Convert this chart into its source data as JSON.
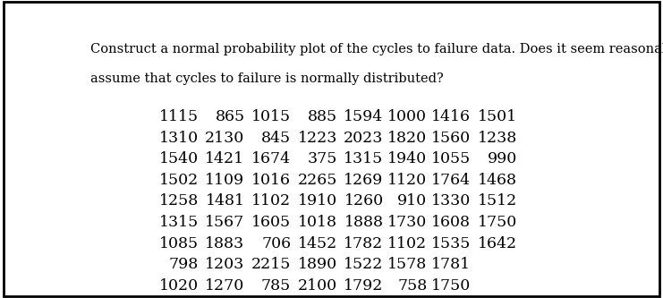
{
  "title_line1": "Construct a normal probability plot of the cycles to failure data. Does it seem reasonable to",
  "title_line2": "assume that cycles to failure is normally distributed?",
  "rows": [
    [
      1115,
      865,
      1015,
      885,
      1594,
      1000,
      1416,
      1501
    ],
    [
      1310,
      2130,
      845,
      1223,
      2023,
      1820,
      1560,
      1238
    ],
    [
      1540,
      1421,
      1674,
      375,
      1315,
      1940,
      1055,
      990
    ],
    [
      1502,
      1109,
      1016,
      2265,
      1269,
      1120,
      1764,
      1468
    ],
    [
      1258,
      1481,
      1102,
      1910,
      1260,
      910,
      1330,
      1512
    ],
    [
      1315,
      1567,
      1605,
      1018,
      1888,
      1730,
      1608,
      1750
    ],
    [
      1085,
      1883,
      706,
      1452,
      1782,
      1102,
      1535,
      1642
    ],
    [
      798,
      1203,
      2215,
      1890,
      1522,
      1578,
      1781,
      null
    ],
    [
      1020,
      1270,
      785,
      2100,
      1792,
      758,
      1750,
      null
    ]
  ],
  "background_color": "#ffffff",
  "text_color": "#000000",
  "title_fontsize": 10.5,
  "data_fontsize": 12.5,
  "font_family": "DejaVu Serif"
}
